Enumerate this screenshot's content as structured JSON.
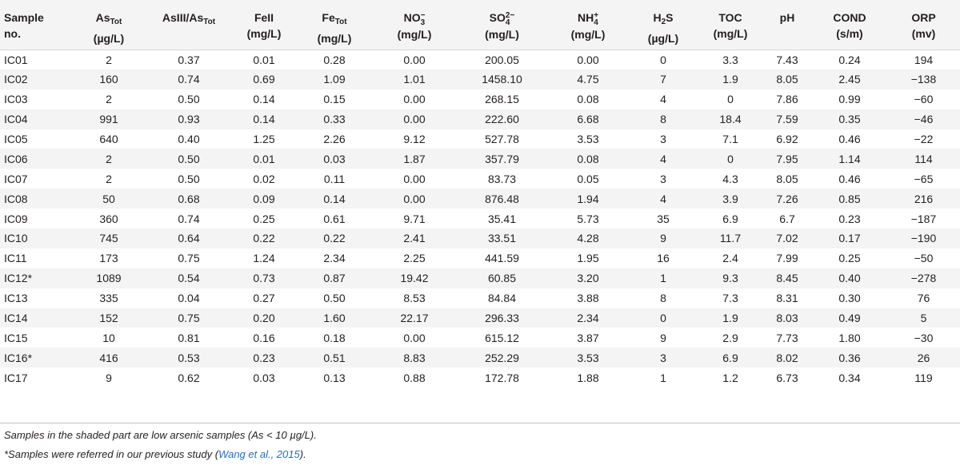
{
  "table": {
    "headers": [
      {
        "line1": "Sample",
        "line2": "no."
      },
      {
        "line1": "As",
        "sub": "Tot",
        "line2": "(µg/L)"
      },
      {
        "line1": "AsIII/As",
        "sub": "Tot",
        "line2": ""
      },
      {
        "line1": "FeII",
        "line2": "(mg/L)"
      },
      {
        "line1": "Fe",
        "sub": "Tot",
        "line2": "(mg/L)"
      },
      {
        "line1": "NO",
        "sup": "−",
        "lo": "3",
        "line2": "(mg/L)"
      },
      {
        "line1": "SO",
        "sup": "2−",
        "lo": "4",
        "line2": "(mg/L)"
      },
      {
        "line1": "NH",
        "sup": "+",
        "lo": "4",
        "line2": "(mg/L)"
      },
      {
        "line1": "H",
        "sub": "2",
        "tail": "S",
        "line2": "(µg/L)"
      },
      {
        "line1": "TOC",
        "line2": "(mg/L)"
      },
      {
        "line1": "pH",
        "line2": ""
      },
      {
        "line1": "COND",
        "line2": "(s/m)"
      },
      {
        "line1": "ORP",
        "line2": "(mv)"
      }
    ],
    "rows": [
      [
        "IC01",
        "2",
        "0.37",
        "0.01",
        "0.28",
        "0.00",
        "200.05",
        "0.00",
        "0",
        "3.3",
        "7.43",
        "0.24",
        "194"
      ],
      [
        "IC02",
        "160",
        "0.74",
        "0.69",
        "1.09",
        "1.01",
        "1458.10",
        "4.75",
        "7",
        "1.9",
        "8.05",
        "2.45",
        "−138"
      ],
      [
        "IC03",
        "2",
        "0.50",
        "0.14",
        "0.15",
        "0.00",
        "268.15",
        "0.08",
        "4",
        "0",
        "7.86",
        "0.99",
        "−60"
      ],
      [
        "IC04",
        "991",
        "0.93",
        "0.14",
        "0.33",
        "0.00",
        "222.60",
        "6.68",
        "8",
        "18.4",
        "7.59",
        "0.35",
        "−46"
      ],
      [
        "IC05",
        "640",
        "0.40",
        "1.25",
        "2.26",
        "9.12",
        "527.78",
        "3.53",
        "3",
        "7.1",
        "6.92",
        "0.46",
        "−22"
      ],
      [
        "IC06",
        "2",
        "0.50",
        "0.01",
        "0.03",
        "1.87",
        "357.79",
        "0.08",
        "4",
        "0",
        "7.95",
        "1.14",
        "114"
      ],
      [
        "IC07",
        "2",
        "0.50",
        "0.02",
        "0.11",
        "0.00",
        "83.73",
        "0.05",
        "3",
        "4.3",
        "8.05",
        "0.46",
        "−65"
      ],
      [
        "IC08",
        "50",
        "0.68",
        "0.09",
        "0.14",
        "0.00",
        "876.48",
        "1.94",
        "4",
        "3.9",
        "7.26",
        "0.85",
        "216"
      ],
      [
        "IC09",
        "360",
        "0.74",
        "0.25",
        "0.61",
        "9.71",
        "35.41",
        "5.73",
        "35",
        "6.9",
        "6.7",
        "0.23",
        "−187"
      ],
      [
        "IC10",
        "745",
        "0.64",
        "0.22",
        "0.22",
        "2.41",
        "33.51",
        "4.28",
        "9",
        "11.7",
        "7.02",
        "0.17",
        "−190"
      ],
      [
        "IC11",
        "173",
        "0.75",
        "1.24",
        "2.34",
        "2.25",
        "441.59",
        "1.95",
        "16",
        "2.4",
        "7.99",
        "0.25",
        "−50"
      ],
      [
        "IC12*",
        "1089",
        "0.54",
        "0.73",
        "0.87",
        "19.42",
        "60.85",
        "3.20",
        "1",
        "9.3",
        "8.45",
        "0.40",
        "−278"
      ],
      [
        "IC13",
        "335",
        "0.04",
        "0.27",
        "0.50",
        "8.53",
        "84.84",
        "3.88",
        "8",
        "7.3",
        "8.31",
        "0.30",
        "76"
      ],
      [
        "IC14",
        "152",
        "0.75",
        "0.20",
        "1.60",
        "22.17",
        "296.33",
        "2.34",
        "0",
        "1.9",
        "8.03",
        "0.49",
        "5"
      ],
      [
        "IC15",
        "10",
        "0.81",
        "0.16",
        "0.18",
        "0.00",
        "615.12",
        "3.87",
        "9",
        "2.9",
        "7.73",
        "1.80",
        "−30"
      ],
      [
        "IC16*",
        "416",
        "0.53",
        "0.23",
        "0.51",
        "8.83",
        "252.29",
        "3.53",
        "3",
        "6.9",
        "8.02",
        "0.36",
        "26"
      ],
      [
        "IC17",
        "9",
        "0.62",
        "0.03",
        "0.13",
        "0.88",
        "172.78",
        "1.88",
        "1",
        "1.2",
        "6.73",
        "0.34",
        "119"
      ]
    ]
  },
  "footnotes": {
    "note1": "Samples in the shaded part are low arsenic samples (As < 10 µg/L).",
    "note2_prefix": "*Samples were referred in our previous study (",
    "note2_link": "Wang et al., 2015",
    "note2_suffix": ")."
  }
}
